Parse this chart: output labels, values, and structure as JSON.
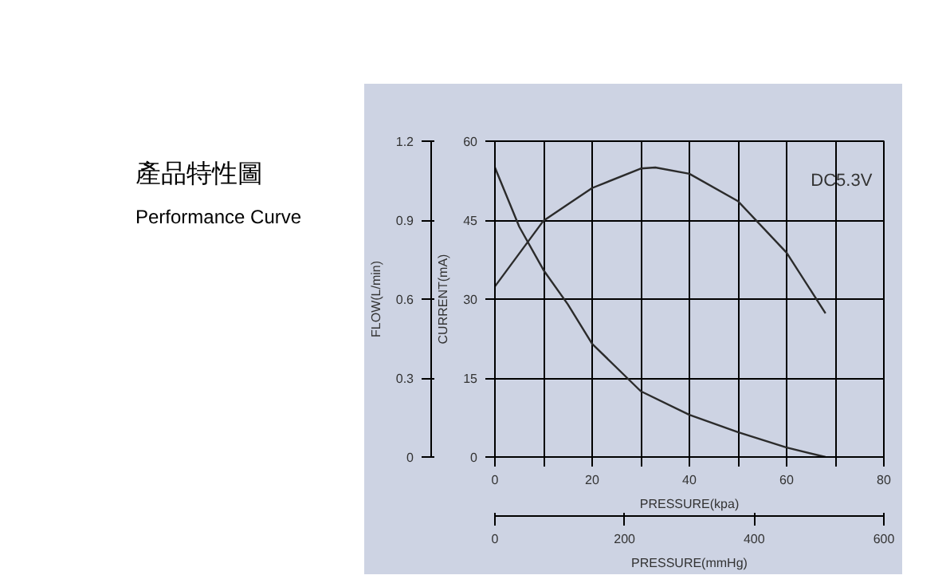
{
  "chart_data": {
    "type": "line",
    "title": "產品特性圖",
    "subtitle": "Performance Curve",
    "xlabel": "PRESSURE(kpa)",
    "ylabel": "CURRENT(mA)",
    "y2label": "FLOW(L/min)",
    "x2label": "PRESSURE(mmHg)",
    "annotations": [
      "DC5.3V"
    ],
    "xlim": [
      0,
      80
    ],
    "xticks": [
      0,
      {
        "value": 10,
        "label": null
      },
      20,
      {
        "value": 30,
        "label": null
      },
      40,
      {
        "value": 50,
        "label": null
      },
      60,
      {
        "value": 70,
        "label": null
      },
      80
    ],
    "x2lim": [
      0,
      600
    ],
    "x2ticks": [
      0,
      200,
      400,
      600
    ],
    "ylim": [
      0,
      60
    ],
    "yticks": [
      0,
      15,
      30,
      45,
      60
    ],
    "y2lim": [
      0,
      1.2
    ],
    "y2ticks": [
      0,
      0.3,
      0.6,
      0.9,
      1.2
    ],
    "grid": true,
    "line_style": "solid",
    "marker": "none",
    "series": [
      {
        "color": "#2b2b2b",
        "x": [
          0,
          10,
          20,
          30,
          33,
          40,
          50,
          60,
          68
        ],
        "values": [
          32.4,
          44.9,
          51.1,
          54.8,
          55,
          53.8,
          48.6,
          38.8,
          27.3
        ]
      },
      {
        "color": "#2b2b2b",
        "axis": "y2",
        "x": [
          0,
          5,
          10,
          15,
          20,
          30,
          40,
          50,
          60,
          68
        ],
        "values": [
          1.1,
          0.875,
          0.71,
          0.58,
          0.43,
          0.25,
          0.16,
          0.094,
          0.036,
          0
        ]
      }
    ]
  }
}
